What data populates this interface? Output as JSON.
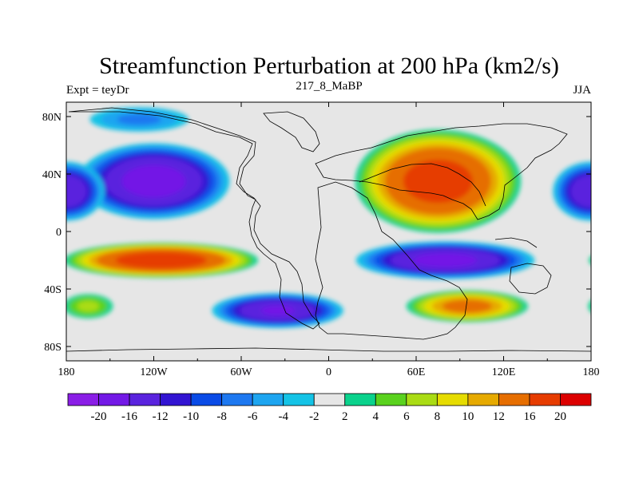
{
  "chart_data": {
    "type": "heatmap",
    "title": "Streamfunction Perturbation at 200 hPa (km2/s)",
    "left_subtitle": "Expt = teyDr",
    "center_subtitle": "217_8_MaBP",
    "right_subtitle": "JJA",
    "x_ticks": [
      "180",
      "120W",
      "60W",
      "0",
      "60E",
      "120E",
      "180"
    ],
    "y_ticks": [
      "80N",
      "40N",
      "0",
      "40S",
      "80S"
    ],
    "x_range": [
      -180,
      180
    ],
    "y_range": [
      -90,
      90
    ],
    "colorbar_labels": [
      "-20",
      "-16",
      "-12",
      "-10",
      "-8",
      "-6",
      "-4",
      "-2",
      "2",
      "4",
      "6",
      "8",
      "10",
      "12",
      "16",
      "20"
    ],
    "colorbar_colors": [
      "#8a1ee6",
      "#7319e6",
      "#5a23de",
      "#3214d2",
      "#0a4be6",
      "#1e78f0",
      "#1ea5f0",
      "#14c3e6",
      "#e6e6e6",
      "#0ad28c",
      "#5ad21e",
      "#aadc14",
      "#e6dc00",
      "#e6aa00",
      "#e66e00",
      "#e63c00",
      "#dc0000"
    ],
    "features": [
      {
        "name": "NE Pacific low",
        "lon": -120,
        "lat": 35,
        "value": -18,
        "rx": 55,
        "ry": 28
      },
      {
        "name": "Eurasian high",
        "lon": 75,
        "lat": 35,
        "value": 18,
        "rx": 60,
        "ry": 38
      },
      {
        "name": "Tropical SE Pacific high",
        "lon": -115,
        "lat": -20,
        "value": 19,
        "rx": 70,
        "ry": 13
      },
      {
        "name": "South Atlantic/Indian low",
        "lon": 80,
        "lat": -20,
        "value": -17,
        "rx": 65,
        "ry": 14
      },
      {
        "name": "Southern Ocean low",
        "lon": -35,
        "lat": -55,
        "value": -16,
        "rx": 48,
        "ry": 13
      },
      {
        "name": "Southern Ocean high",
        "lon": 95,
        "lat": -52,
        "value": 13,
        "rx": 45,
        "ry": 12
      },
      {
        "name": "West Pacific low",
        "lon": 180,
        "lat": 28,
        "value": -15,
        "rx": 28,
        "ry": 22
      },
      {
        "name": "Western hemisphere subpolar low",
        "lon": -130,
        "lat": 78,
        "value": -6,
        "rx": 40,
        "ry": 10
      },
      {
        "name": "South Pacific high",
        "lon": -165,
        "lat": -52,
        "value": 6,
        "rx": 20,
        "ry": 10
      }
    ]
  }
}
